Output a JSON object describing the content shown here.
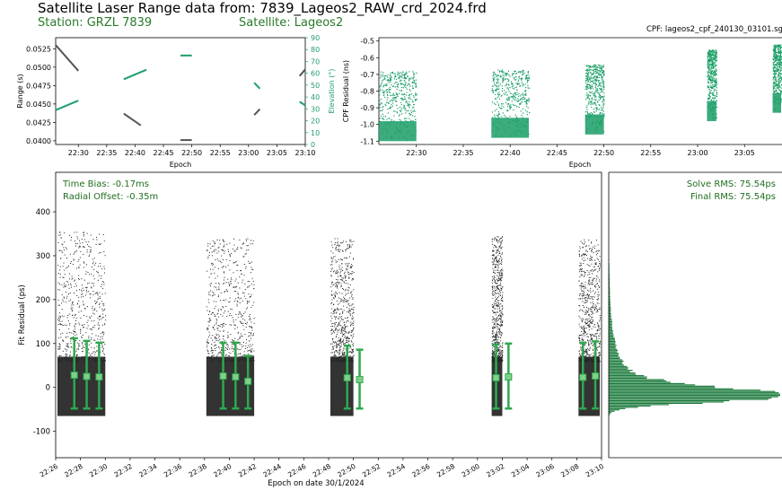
{
  "header": {
    "title": "Satellite Laser Range data from: 7839_Lageos2_RAW_crd_2024.frd",
    "station": "Station: GRZL 7839",
    "satellite": "Satellite: Lageos2",
    "cpf": "CPF: lageos2_cpf_240130_03101.sg"
  },
  "colors": {
    "range": "#555555",
    "elevation": "#1f9e6a",
    "cpf_points": "#1a9e66",
    "fit_points": "#222222",
    "bins": "#2fa84f",
    "histogram": "#1b7a3c",
    "annotation_text": "#1f6e1f"
  },
  "chart_data": [
    {
      "id": "range_elevation",
      "type": "line",
      "xlabel": "Epoch",
      "ylabel": "Range (s)",
      "y2label": "Elevation (°)",
      "x_ticks": [
        "22:30",
        "22:35",
        "22:40",
        "22:45",
        "22:50",
        "22:55",
        "23:00",
        "23:05",
        "23:10"
      ],
      "y_ticks": [
        "0.0400",
        "0.0425",
        "0.0450",
        "0.0475",
        "0.0500",
        "0.0525"
      ],
      "y2_ticks": [
        "0",
        "10",
        "20",
        "30",
        "40",
        "50",
        "60",
        "70",
        "80",
        "90"
      ],
      "xlim": [
        "22:26",
        "23:10"
      ],
      "ylim": [
        0.0395,
        0.054
      ],
      "y2lim": [
        0,
        90
      ],
      "range_series": [
        {
          "x": [
            "22:26",
            "22:30"
          ],
          "y": [
            0.053,
            0.0495
          ]
        },
        {
          "x": [
            "22:38",
            "22:41"
          ],
          "y": [
            0.0437,
            0.0421
          ]
        },
        {
          "x": [
            "22:48",
            "22:50"
          ],
          "y": [
            0.0401,
            0.0401
          ]
        },
        {
          "x": [
            "23:01",
            "23:02"
          ],
          "y": [
            0.0435,
            0.0443
          ]
        },
        {
          "x": [
            "23:09",
            "23:10"
          ],
          "y": [
            0.0488,
            0.0497
          ]
        }
      ],
      "elevation_series": [
        {
          "x": [
            "22:26",
            "22:30"
          ],
          "y": [
            29,
            37
          ]
        },
        {
          "x": [
            "22:38",
            "22:42"
          ],
          "y": [
            55,
            63
          ]
        },
        {
          "x": [
            "22:48",
            "22:50"
          ],
          "y": [
            75,
            75
          ]
        },
        {
          "x": [
            "23:01",
            "23:02"
          ],
          "y": [
            52,
            47
          ]
        },
        {
          "x": [
            "23:09",
            "23:10"
          ],
          "y": [
            36,
            33
          ]
        }
      ]
    },
    {
      "id": "cpf_residual",
      "type": "scatter",
      "xlabel": "Epoch",
      "ylabel": "CPF Residual (ns)",
      "x_ticks": [
        "22:30",
        "22:35",
        "22:40",
        "22:45",
        "22:50",
        "22:55",
        "23:00",
        "23:05"
      ],
      "y_ticks": [
        "-1.1",
        "-1.0",
        "-0.9",
        "-0.8",
        "-0.7",
        "-0.6",
        "-0.5"
      ],
      "xlim": [
        "22:26",
        "23:09"
      ],
      "ylim": [
        -1.12,
        -0.48
      ],
      "passes": [
        {
          "start": "22:26",
          "end": "22:30",
          "low": -1.1,
          "high": -0.68
        },
        {
          "start": "22:38",
          "end": "22:42",
          "low": -1.08,
          "high": -0.67
        },
        {
          "start": "22:48",
          "end": "22:50",
          "low": -1.06,
          "high": -0.64
        },
        {
          "start": "23:01",
          "end": "23:02",
          "low": -0.98,
          "high": -0.55
        },
        {
          "start": "23:08",
          "end": "23:09",
          "low": -0.93,
          "high": -0.52
        }
      ]
    },
    {
      "id": "fit_residual",
      "type": "scatter",
      "xlabel": "Epoch on date 30/1/2024",
      "ylabel": "Fit Residual (ps)",
      "x_ticks": [
        "22:26",
        "22:28",
        "22:30",
        "22:32",
        "22:34",
        "22:36",
        "22:38",
        "22:40",
        "22:42",
        "22:44",
        "22:46",
        "22:48",
        "22:50",
        "22:52",
        "22:54",
        "22:56",
        "22:58",
        "23:00",
        "23:02",
        "23:04",
        "23:06",
        "23:08",
        "23:10"
      ],
      "y_ticks": [
        "-100",
        "0",
        "100",
        "200",
        "300",
        "400"
      ],
      "xlim": [
        "22:26",
        "23:10"
      ],
      "ylim": [
        -160,
        490
      ],
      "time_bias": "Time Bias:     -0.17ms",
      "radial_offset": "Radial Offset:    -0.35m",
      "passes": [
        {
          "start": "22:26",
          "end": "22:30",
          "top": 355
        },
        {
          "start": "22:38",
          "end": "22:42",
          "top": 342
        },
        {
          "start": "22:48",
          "end": "22:50",
          "top": 340
        },
        {
          "start": "23:01",
          "end": "23:02",
          "top": 345
        },
        {
          "start": "23:08",
          "end": "23:10",
          "top": 340
        }
      ],
      "normal_points": [
        {
          "t": "22:27",
          "mean": 28,
          "low": -48,
          "high": 112
        },
        {
          "t": "22:28",
          "mean": 25,
          "low": -48,
          "high": 106
        },
        {
          "t": "22:29",
          "mean": 24,
          "low": -48,
          "high": 102
        },
        {
          "t": "22:39",
          "mean": 26,
          "low": -48,
          "high": 102
        },
        {
          "t": "22:40",
          "mean": 24,
          "low": -48,
          "high": 102
        },
        {
          "t": "22:41",
          "mean": 14,
          "low": -48,
          "high": 72
        },
        {
          "t": "22:49",
          "mean": 22,
          "low": -48,
          "high": 95
        },
        {
          "t": "22:50",
          "mean": 18,
          "low": -48,
          "high": 86
        },
        {
          "t": "23:01",
          "mean": 22,
          "low": -48,
          "high": 98
        },
        {
          "t": "23:02",
          "mean": 24,
          "low": -48,
          "high": 100
        },
        {
          "t": "23:08",
          "mean": 23,
          "low": -48,
          "high": 102
        },
        {
          "t": "23:09",
          "mean": 26,
          "low": -48,
          "high": 105
        }
      ]
    },
    {
      "id": "residual_histogram",
      "type": "bar",
      "orientation": "horizontal",
      "solve_rms": "Solve RMS:  75.54ps",
      "final_rms": "Final RMS:  75.54ps",
      "peak_ps": -25
    }
  ]
}
